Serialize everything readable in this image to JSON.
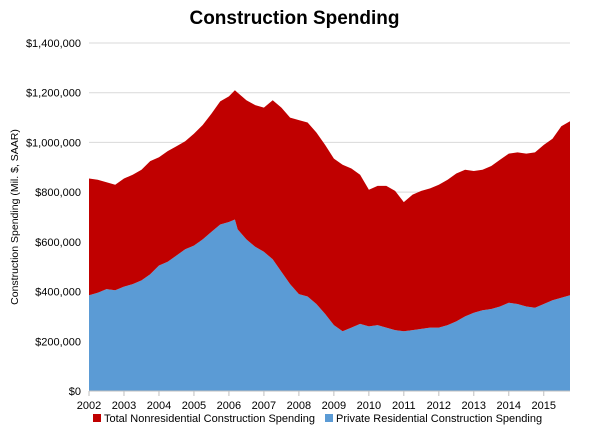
{
  "chart_data": {
    "type": "area",
    "stacked": true,
    "title": "Construction Spending",
    "xlabel": "",
    "ylabel": "Construction Spending (Mil. $, SAAR)",
    "ylim": [
      0,
      1400000
    ],
    "xlim": [
      2002.0,
      2015.75
    ],
    "yticks": [
      0,
      200000,
      400000,
      600000,
      800000,
      1000000,
      1200000,
      1400000
    ],
    "ytick_labels": [
      "$0",
      "$200,000",
      "$400,000",
      "$600,000",
      "$800,000",
      "$1,000,000",
      "$1,200,000",
      "$1,400,000"
    ],
    "xticks": [
      2002,
      2003,
      2004,
      2005,
      2006,
      2007,
      2008,
      2009,
      2010,
      2011,
      2012,
      2013,
      2014,
      2015
    ],
    "xtick_labels": [
      "2002",
      "2003",
      "2004",
      "2005",
      "2006",
      "2007",
      "2008",
      "2009",
      "2010",
      "2011",
      "2012",
      "2013",
      "2014",
      "2015"
    ],
    "grid": "horizontal",
    "legend_position": "bottom",
    "x": [
      2002.0,
      2002.25,
      2002.5,
      2002.75,
      2003.0,
      2003.25,
      2003.5,
      2003.75,
      2004.0,
      2004.25,
      2004.5,
      2004.75,
      2005.0,
      2005.25,
      2005.5,
      2005.75,
      2006.0,
      2006.17,
      2006.25,
      2006.5,
      2006.75,
      2007.0,
      2007.25,
      2007.5,
      2007.75,
      2008.0,
      2008.25,
      2008.5,
      2008.75,
      2009.0,
      2009.25,
      2009.5,
      2009.75,
      2010.0,
      2010.25,
      2010.5,
      2010.75,
      2011.0,
      2011.25,
      2011.5,
      2011.75,
      2012.0,
      2012.25,
      2012.5,
      2012.75,
      2013.0,
      2013.25,
      2013.5,
      2013.75,
      2014.0,
      2014.25,
      2014.5,
      2014.75,
      2015.0,
      2015.25,
      2015.5,
      2015.75
    ],
    "series": [
      {
        "name": "Private Residential Construction Spending",
        "color": "#5b9bd5",
        "values": [
          385000,
          395000,
          410000,
          405000,
          420000,
          430000,
          445000,
          470000,
          505000,
          520000,
          545000,
          570000,
          585000,
          610000,
          640000,
          670000,
          680000,
          690000,
          650000,
          610000,
          580000,
          560000,
          530000,
          480000,
          430000,
          390000,
          380000,
          350000,
          310000,
          265000,
          240000,
          255000,
          270000,
          260000,
          265000,
          255000,
          245000,
          240000,
          245000,
          250000,
          255000,
          255000,
          265000,
          280000,
          300000,
          315000,
          325000,
          330000,
          340000,
          355000,
          350000,
          340000,
          335000,
          350000,
          365000,
          375000,
          385000
        ]
      },
      {
        "name": "Total Nonresidential Construction Spending",
        "color": "#c00000",
        "values": [
          470000,
          455000,
          430000,
          425000,
          435000,
          440000,
          445000,
          455000,
          435000,
          445000,
          440000,
          435000,
          450000,
          460000,
          475000,
          495000,
          505000,
          520000,
          550000,
          560000,
          570000,
          580000,
          640000,
          660000,
          670000,
          700000,
          700000,
          690000,
          680000,
          670000,
          670000,
          640000,
          600000,
          550000,
          560000,
          570000,
          560000,
          520000,
          545000,
          555000,
          560000,
          575000,
          585000,
          595000,
          590000,
          570000,
          565000,
          575000,
          590000,
          600000,
          610000,
          615000,
          625000,
          640000,
          650000,
          690000,
          700000
        ]
      }
    ]
  }
}
